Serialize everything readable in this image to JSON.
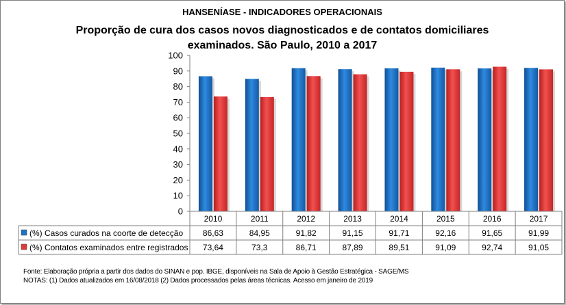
{
  "chart_data": {
    "type": "bar",
    "title": "HANSENÍASE - INDICADORES OPERACIONAIS",
    "subtitle_lines": [
      "Proporção de cura dos casos novos diagnosticados e de contatos domiciliares",
      "examinados.  São Paulo, 2010 a 2017"
    ],
    "categories": [
      "2010",
      "2011",
      "2012",
      "2013",
      "2014",
      "2015",
      "2016",
      "2017"
    ],
    "series": [
      {
        "name": "(%) Casos curados na coorte de detecção",
        "color": "#1f73c4",
        "values": [
          86.63,
          84.95,
          91.82,
          91.15,
          91.71,
          92.16,
          91.65,
          91.99
        ],
        "labels": [
          "86,63",
          "84,95",
          "91,82",
          "91,15",
          "91,71",
          "92,16",
          "91,65",
          "91,99"
        ]
      },
      {
        "name": "(%) Contatos examinados entre registrados",
        "color": "#e23a3a",
        "values": [
          73.64,
          73.3,
          86.71,
          87.89,
          89.51,
          91.09,
          92.74,
          91.05
        ],
        "labels": [
          "73,64",
          "73,3",
          "86,71",
          "87,89",
          "89,51",
          "91,09",
          "92,74",
          "91,05"
        ]
      }
    ],
    "yticks": [
      "0",
      "10",
      "20",
      "30",
      "40",
      "50",
      "60",
      "70",
      "80",
      "90",
      "100"
    ],
    "ylim": [
      0,
      100
    ],
    "grid": false,
    "legend": "data-table"
  },
  "footer": {
    "source": "Fonte:  Elaboração própria a partir dos dados do  SINAN  e  pop. IBGE, disponíveis na Sala de Apoio à Gestão Estratégica - SAGE/MS",
    "notes": "NOTAS: (1) Dados atualizados em 16/08/2018 (2) Dados processados pelas áreas técnicas. Acesso em janeiro de 2019"
  }
}
